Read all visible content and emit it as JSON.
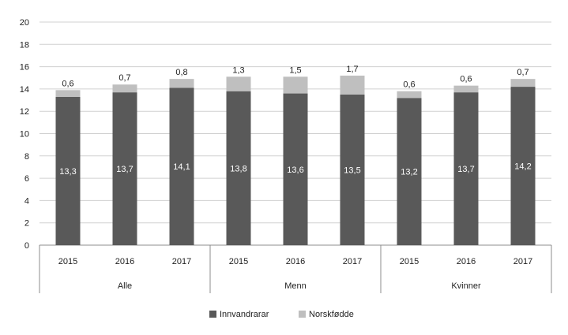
{
  "chart_data": {
    "type": "bar",
    "stacked": true,
    "ylim": [
      0,
      20
    ],
    "yticks": [
      "0",
      "2",
      "4",
      "6",
      "8",
      "10",
      "12",
      "14",
      "16",
      "18",
      "20"
    ],
    "grid": true,
    "legend_position": "bottom",
    "groups": [
      {
        "label": "Alle",
        "years": [
          "2015",
          "2016",
          "2017"
        ]
      },
      {
        "label": "Menn",
        "years": [
          "2015",
          "2016",
          "2017"
        ]
      },
      {
        "label": "Kvinner",
        "years": [
          "2015",
          "2016",
          "2017"
        ]
      }
    ],
    "series": [
      {
        "name": "Innvandrarar",
        "color": "#595959",
        "values": [
          13.3,
          13.7,
          14.1,
          13.8,
          13.6,
          13.5,
          13.2,
          13.7,
          14.2
        ],
        "labels": [
          "13,3",
          "13,7",
          "14,1",
          "13,8",
          "13,6",
          "13,5",
          "13,2",
          "13,7",
          "14,2"
        ]
      },
      {
        "name": "Norskfødde",
        "color": "#bfbfbf",
        "values": [
          0.6,
          0.7,
          0.8,
          1.3,
          1.5,
          1.7,
          0.6,
          0.6,
          0.7
        ],
        "labels": [
          "0,6",
          "0,7",
          "0,8",
          "1,3",
          "1,5",
          "1,7",
          "0,6",
          "0,6",
          "0,7"
        ]
      }
    ]
  }
}
